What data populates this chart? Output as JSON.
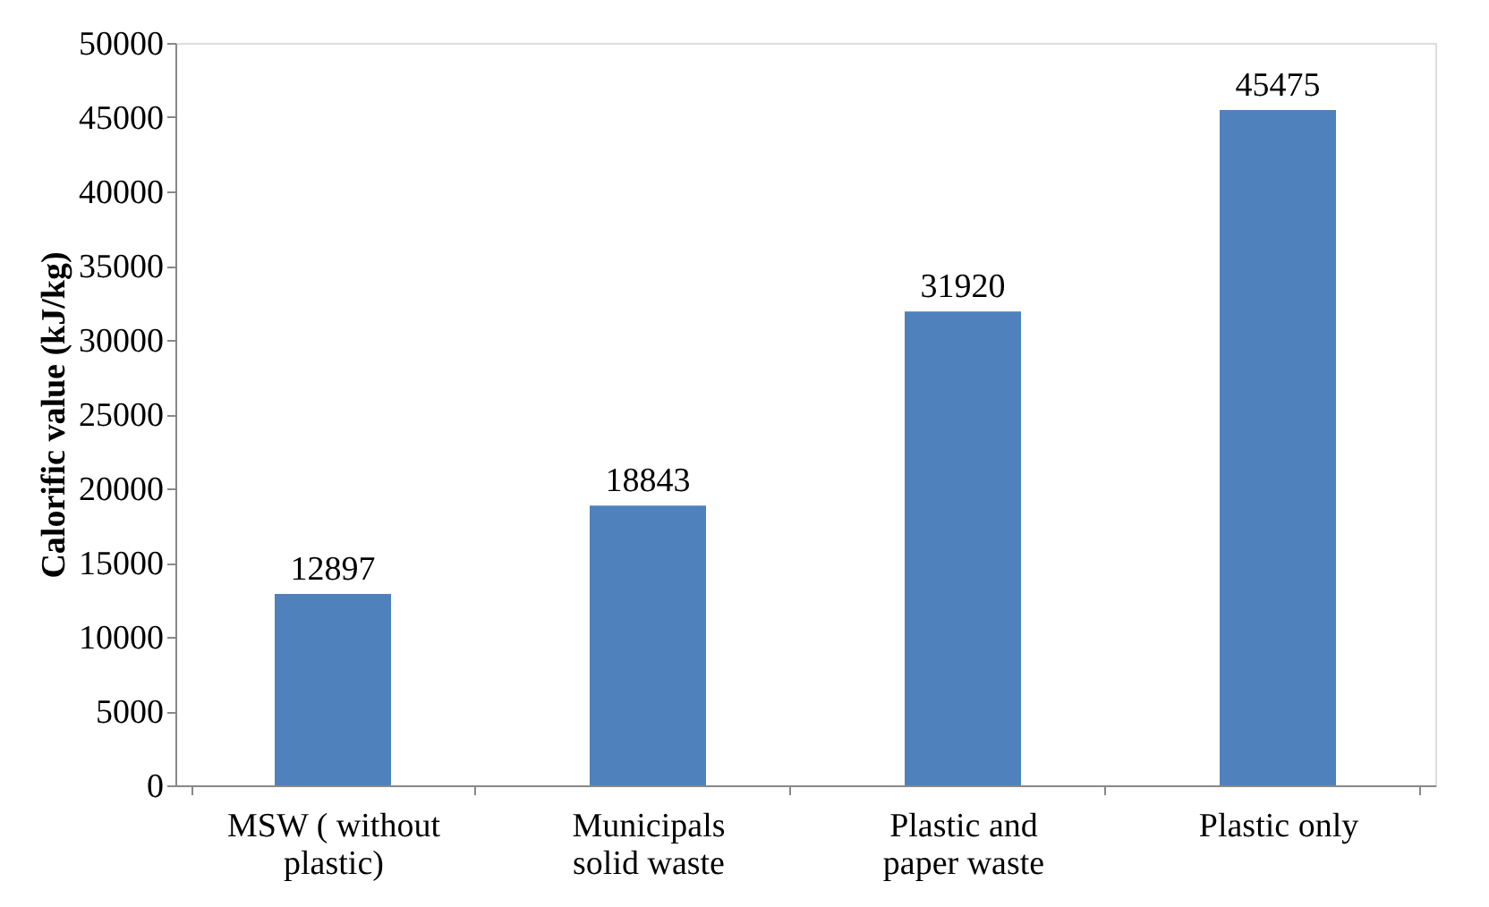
{
  "chart_data": {
    "type": "bar",
    "ylabel": "Calorific value (kJ/kg)",
    "categories": [
      "MSW ( without plastic)",
      "Municipals solid waste",
      "Plastic and paper waste",
      "Plastic only"
    ],
    "values": [
      12897,
      18843,
      31920,
      45475
    ],
    "color": "#4f81bd",
    "ylim": [
      0,
      50000
    ],
    "yticks": [
      0,
      5000,
      10000,
      15000,
      20000,
      25000,
      30000,
      35000,
      40000,
      45000,
      50000
    ],
    "grid": false,
    "data_labels": true
  }
}
